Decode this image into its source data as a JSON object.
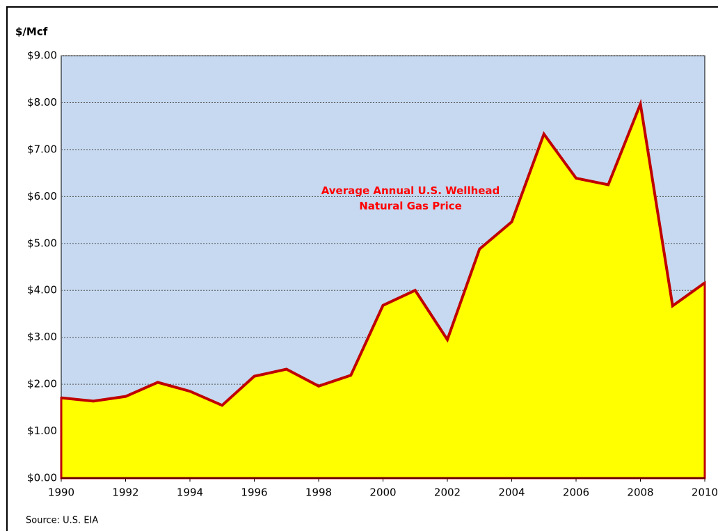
{
  "chart_data": {
    "type": "area",
    "title": "Average Annual U.S. Wellhead Natural Gas Price",
    "y_label": "$/Mcf",
    "source": "Source: U.S. EIA",
    "x": [
      1990,
      1991,
      1992,
      1993,
      1994,
      1995,
      1996,
      1997,
      1998,
      1999,
      2000,
      2001,
      2002,
      2003,
      2004,
      2005,
      2006,
      2007,
      2008,
      2009,
      2010
    ],
    "series": [
      {
        "name": "Average Annual U.S. Wellhead Natural Gas Price",
        "color": "#ffff00",
        "line_color": "#c00000",
        "values": [
          1.71,
          1.64,
          1.74,
          2.04,
          1.85,
          1.55,
          2.17,
          2.32,
          1.96,
          2.19,
          3.68,
          4.0,
          2.95,
          4.88,
          5.46,
          7.33,
          6.39,
          6.25,
          7.97,
          3.67,
          4.16
        ]
      }
    ],
    "xlim": [
      1990,
      2010
    ],
    "xticks": [
      1990,
      1992,
      1994,
      1996,
      1998,
      2000,
      2002,
      2004,
      2006,
      2008,
      2010
    ],
    "ylim": [
      0,
      9
    ],
    "yticks": [
      {
        "value": 0,
        "label": "$0.00"
      },
      {
        "value": 1,
        "label": "$1.00"
      },
      {
        "value": 2,
        "label": "$2.00"
      },
      {
        "value": 3,
        "label": "$3.00"
      },
      {
        "value": 4,
        "label": "$4.00"
      },
      {
        "value": 5,
        "label": "$5.00"
      },
      {
        "value": 6,
        "label": "$6.00"
      },
      {
        "value": 7,
        "label": "$7.00"
      },
      {
        "value": 8,
        "label": "$8.00"
      },
      {
        "value": 9,
        "label": "$9.00"
      }
    ],
    "grid": true,
    "background": "#c6d9f0"
  }
}
